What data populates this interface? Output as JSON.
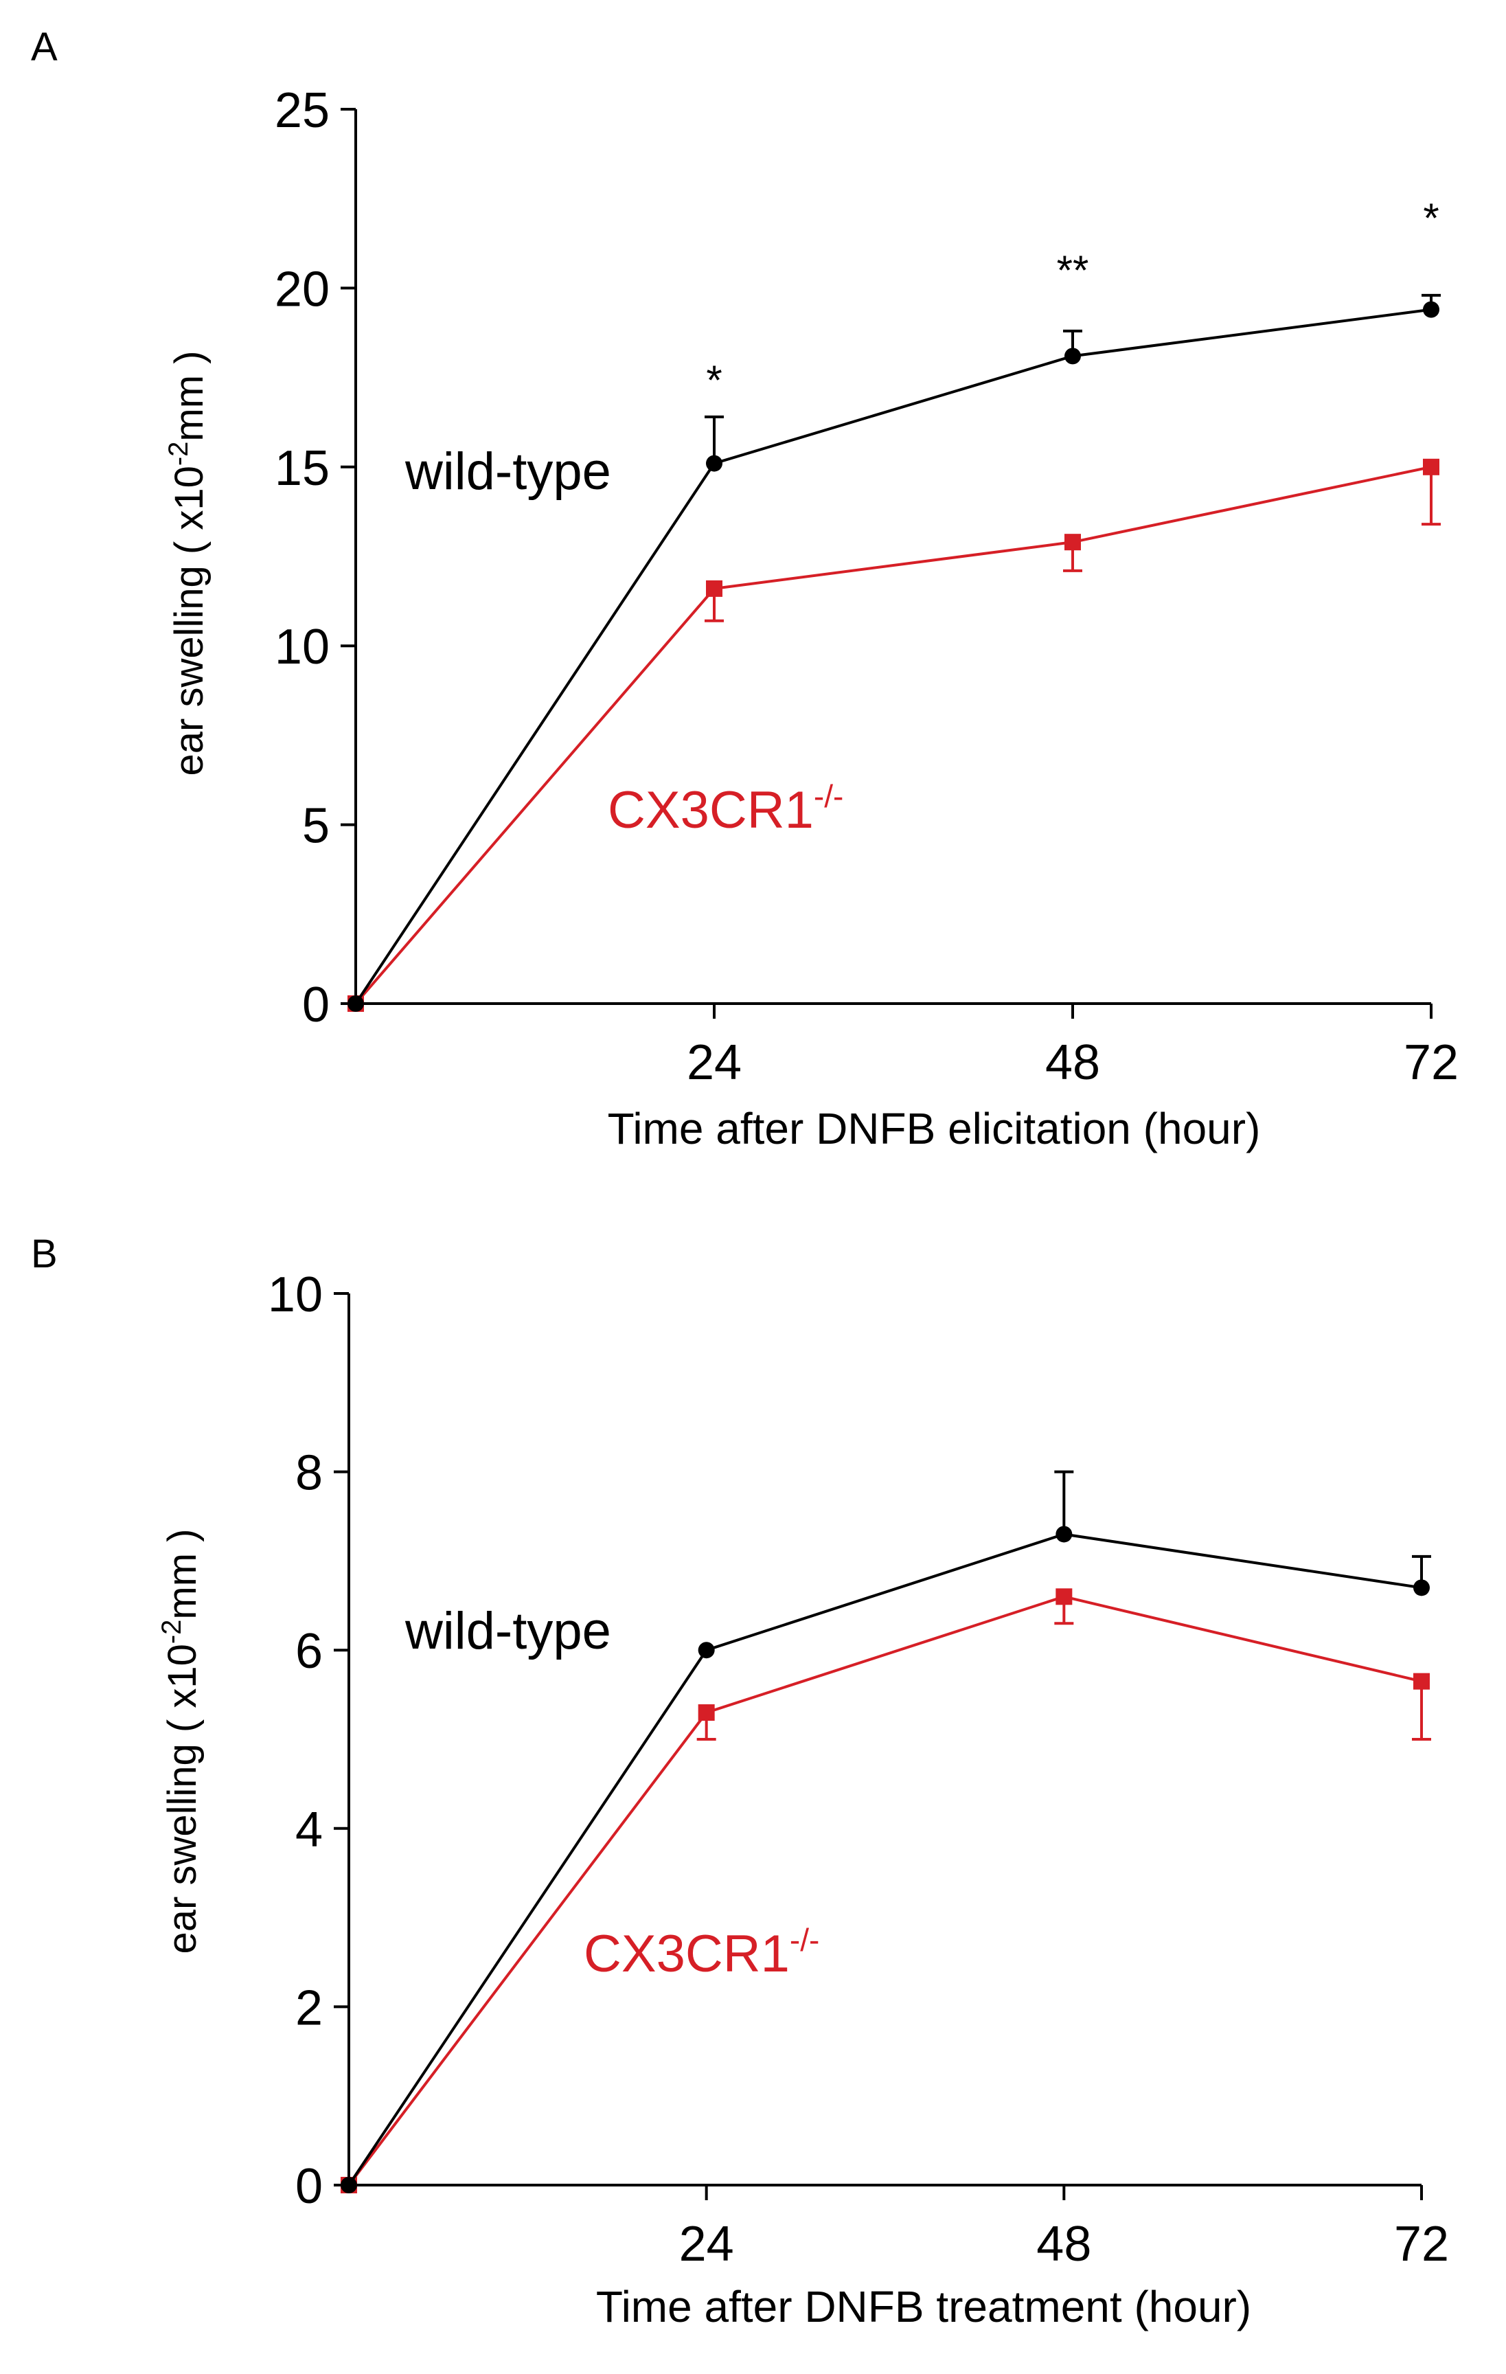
{
  "chart_data": [
    {
      "panel": "A",
      "type": "line",
      "xlabel": "Time  after DNFB  elicitation (hour)",
      "ylabel": "ear swelling ( x10",
      "ylabel_sup": "-2",
      "ylabel_tail": "mm )",
      "ylim": [
        0,
        25
      ],
      "yticks": [
        0,
        5,
        10,
        15,
        20,
        25
      ],
      "xlim": [
        0,
        72
      ],
      "xticks": [
        24,
        48,
        72
      ],
      "significance": [
        {
          "x": 24,
          "label": "*"
        },
        {
          "x": 48,
          "label": "**"
        },
        {
          "x": 72,
          "label": "*"
        }
      ],
      "series": [
        {
          "name": "wild-type",
          "label": "wild-type",
          "color": "#000000",
          "marker": "circle",
          "x": [
            0,
            24,
            48,
            72
          ],
          "y": [
            0,
            15.1,
            18.1,
            19.4
          ],
          "err": [
            0,
            1.3,
            0.7,
            0.4
          ]
        },
        {
          "name": "CX3CR1-/-",
          "label": "CX3CR1",
          "label_sup": "-/-",
          "color": "#d61f26",
          "marker": "square",
          "x": [
            0,
            24,
            48,
            72
          ],
          "y": [
            0,
            11.6,
            12.9,
            15.0
          ],
          "err": [
            0,
            0.9,
            0.8,
            1.6
          ]
        }
      ]
    },
    {
      "panel": "B",
      "type": "line",
      "xlabel": "Time  after DNFB  treatment  (hour)",
      "ylabel": "ear swelling ( x10",
      "ylabel_sup": "-2",
      "ylabel_tail": "mm )",
      "ylim": [
        0,
        10
      ],
      "yticks": [
        0,
        2,
        4,
        6,
        8,
        10
      ],
      "xlim": [
        0,
        72
      ],
      "xticks": [
        24,
        48,
        72
      ],
      "significance": [],
      "series": [
        {
          "name": "wild-type",
          "label": "wild-type",
          "color": "#000000",
          "marker": "circle",
          "x": [
            0,
            24,
            48,
            72
          ],
          "y": [
            0,
            6.0,
            7.3,
            6.7
          ],
          "err": [
            0,
            0,
            0.7,
            0.35
          ]
        },
        {
          "name": "CX3CR1-/-",
          "label": "CX3CR1",
          "label_sup": "-/-",
          "color": "#d61f26",
          "marker": "square",
          "x": [
            0,
            24,
            48,
            72
          ],
          "y": [
            0,
            5.3,
            6.6,
            5.65
          ],
          "err": [
            0,
            0.3,
            0.3,
            0.65
          ]
        }
      ]
    }
  ]
}
